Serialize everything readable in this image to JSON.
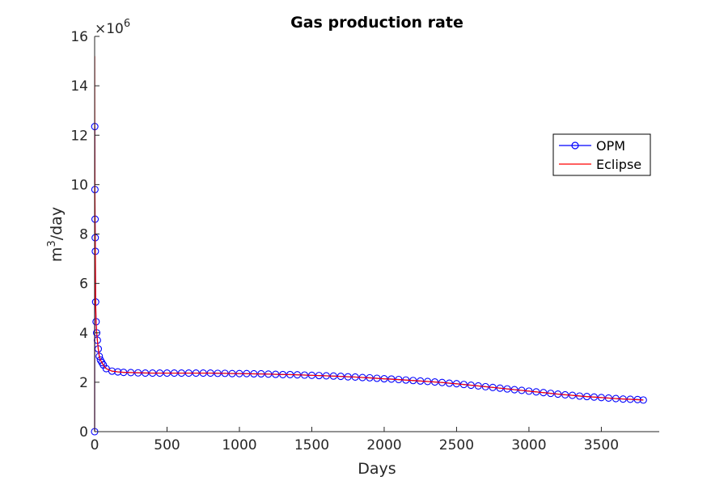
{
  "chart_data": {
    "type": "line",
    "title": "Gas production rate",
    "xlabel": "Days",
    "ylabel_base": "m",
    "ylabel_sup": "3",
    "ylabel_rest": "/day",
    "y_multiplier_base": "×10",
    "y_multiplier_exp": "6",
    "xlim": [
      0,
      3900
    ],
    "ylim": [
      0,
      16
    ],
    "xticks": [
      0,
      500,
      1000,
      1500,
      2000,
      2500,
      3000,
      3500
    ],
    "yticks": [
      0,
      2,
      4,
      6,
      8,
      10,
      12,
      14,
      16
    ],
    "legend_position": "upper-right",
    "series": [
      {
        "name": "OPM",
        "color": "#0000ff",
        "marker": "circle",
        "line": "solid",
        "x": [
          0,
          1,
          2,
          3,
          4,
          5,
          7,
          10,
          14,
          19,
          25,
          32,
          40,
          50,
          60,
          80,
          120,
          160,
          200,
          250,
          300,
          350,
          400,
          450,
          500,
          550,
          600,
          650,
          700,
          750,
          800,
          850,
          900,
          950,
          1000,
          1050,
          1100,
          1150,
          1200,
          1250,
          1300,
          1350,
          1400,
          1450,
          1500,
          1550,
          1600,
          1650,
          1700,
          1750,
          1800,
          1850,
          1900,
          1950,
          2000,
          2050,
          2100,
          2150,
          2200,
          2250,
          2300,
          2350,
          2400,
          2450,
          2500,
          2550,
          2600,
          2650,
          2700,
          2750,
          2800,
          2850,
          2900,
          2950,
          3000,
          3050,
          3100,
          3150,
          3200,
          3250,
          3300,
          3350,
          3400,
          3450,
          3500,
          3550,
          3600,
          3650,
          3700,
          3750,
          3790
        ],
        "y": [
          0,
          12.35,
          9.8,
          8.6,
          7.85,
          7.3,
          5.25,
          4.45,
          4.0,
          3.7,
          3.35,
          3.05,
          2.9,
          2.8,
          2.7,
          2.55,
          2.45,
          2.42,
          2.4,
          2.39,
          2.38,
          2.37,
          2.37,
          2.37,
          2.37,
          2.37,
          2.37,
          2.37,
          2.37,
          2.37,
          2.37,
          2.36,
          2.36,
          2.35,
          2.35,
          2.35,
          2.34,
          2.34,
          2.33,
          2.32,
          2.31,
          2.31,
          2.3,
          2.29,
          2.28,
          2.27,
          2.26,
          2.25,
          2.24,
          2.22,
          2.21,
          2.19,
          2.18,
          2.16,
          2.14,
          2.13,
          2.11,
          2.09,
          2.07,
          2.05,
          2.03,
          2.01,
          1.99,
          1.96,
          1.94,
          1.91,
          1.88,
          1.85,
          1.82,
          1.79,
          1.76,
          1.73,
          1.7,
          1.67,
          1.64,
          1.61,
          1.58,
          1.55,
          1.52,
          1.49,
          1.47,
          1.44,
          1.42,
          1.4,
          1.38,
          1.36,
          1.34,
          1.32,
          1.31,
          1.3,
          1.28
        ]
      },
      {
        "name": "Eclipse",
        "color": "#ff0000",
        "marker": "none",
        "line": "solid",
        "x": [
          0,
          0.5,
          1,
          2,
          3,
          4,
          5,
          7,
          10,
          14,
          19,
          25,
          32,
          40,
          50,
          60,
          80,
          120,
          160,
          200,
          400,
          800,
          1000,
          1200,
          1400,
          1600,
          1800,
          2000,
          2200,
          2400,
          2600,
          2800,
          3000,
          3200,
          3400,
          3600,
          3790
        ],
        "y": [
          0,
          15.2,
          12.35,
          9.8,
          8.6,
          7.85,
          7.3,
          5.25,
          4.45,
          4.0,
          3.7,
          3.35,
          3.05,
          2.9,
          2.8,
          2.7,
          2.55,
          2.45,
          2.42,
          2.4,
          2.37,
          2.37,
          2.35,
          2.33,
          2.3,
          2.26,
          2.21,
          2.14,
          2.07,
          1.99,
          1.88,
          1.76,
          1.64,
          1.52,
          1.42,
          1.34,
          1.28
        ]
      }
    ]
  }
}
